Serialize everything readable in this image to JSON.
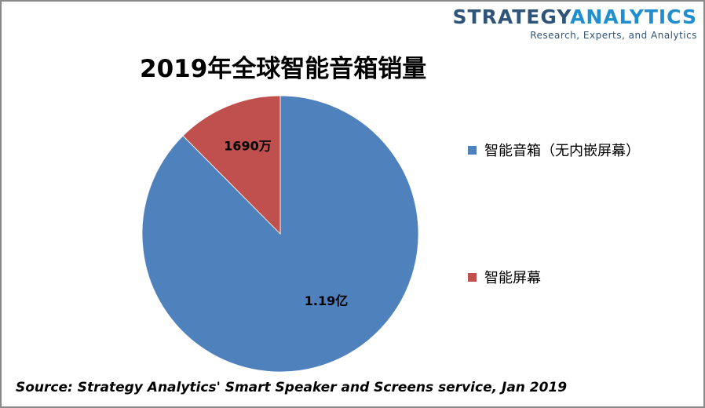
{
  "brand": {
    "logo_word1": "STRATEGY",
    "logo_word2": "ANALYTICS",
    "tagline": "Research, Experts, and Analytics"
  },
  "chart_data": {
    "type": "pie",
    "title": "2019年全球智能音箱销量",
    "unit_note": "units shipped",
    "slices": [
      {
        "label": "智能音箱（无内嵌屏幕）",
        "value": 119000000,
        "data_label": "1.19亿",
        "color": "#4f81bd"
      },
      {
        "label": "智能屏幕",
        "value": 16900000,
        "data_label": "1690万",
        "color": "#c0504d"
      }
    ],
    "start": "12 o'clock",
    "direction": "counterclockwise-from-top for smallest slice",
    "legend_position": "right"
  },
  "source": "Source: Strategy Analytics' Smart Speaker and Screens service, Jan 2019"
}
